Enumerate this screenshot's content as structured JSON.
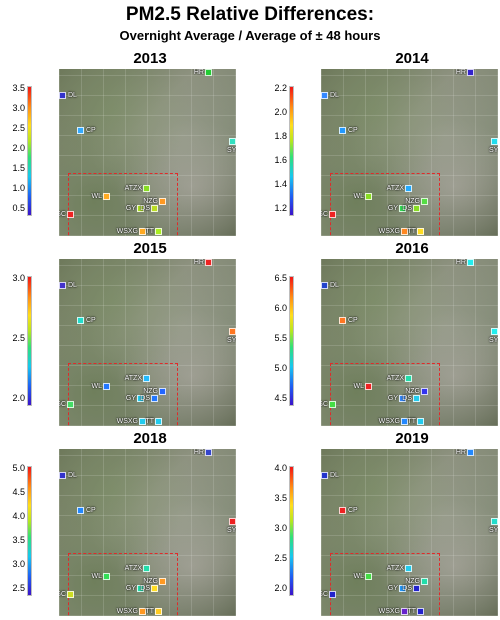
{
  "title": "PM2.5 Relative Differences:",
  "subtitle": "Overnight Average / Average of ± 48 hours",
  "site_labels": {
    "HR": "HR",
    "DL": "DL",
    "CP": "CP",
    "SY": "SY",
    "ATZX": "ATZX",
    "WL": "WL",
    "NZG": "NZG",
    "GY": "GY",
    "DS": "DS",
    "GC": "GC",
    "WSXG": "WSXG",
    "TT": "TT"
  },
  "panels": [
    {
      "year": "2013",
      "ticks": [
        "3.5",
        "3.0",
        "2.5",
        "2.0",
        "1.5",
        "1.0",
        "0.5"
      ],
      "colors": {
        "HR": "#22cc33",
        "DL": "#3333cc",
        "CP": "#33aaff",
        "SY": "#33e0c0",
        "ATZX": "#88dd22",
        "WL": "#ffaa22",
        "NZG": "#ff9922",
        "GY": "#aadd22",
        "DS": "#bbdd22",
        "GC": "#ee2222",
        "WSXG": "#ffaa22",
        "TT": "#aaee22"
      }
    },
    {
      "year": "2014",
      "ticks": [
        "2.2",
        "2.0",
        "1.8",
        "1.6",
        "1.4",
        "1.2"
      ],
      "colors": {
        "HR": "#3322cc",
        "DL": "#3388ff",
        "CP": "#2299ff",
        "SY": "#22ddee",
        "ATZX": "#22aaff",
        "WL": "#88dd22",
        "NZG": "#55dd44",
        "GY": "#33dd55",
        "DS": "#88dd22",
        "GC": "#ee2222",
        "WSXG": "#ff8822",
        "TT": "#ffdd22"
      }
    },
    {
      "year": "2015",
      "ticks": [
        "3.0",
        "2.5",
        "2.0"
      ],
      "colors": {
        "HR": "#ee2222",
        "DL": "#4433cc",
        "CP": "#22ddcc",
        "SY": "#ff7722",
        "ATZX": "#22bbff",
        "WL": "#2277ff",
        "NZG": "#2266ff",
        "GY": "#22ccee",
        "DS": "#2277ff",
        "GC": "#44dd66",
        "WSXG": "#22ccee",
        "TT": "#22ccee"
      }
    },
    {
      "year": "2016",
      "ticks": [
        "6.5",
        "6.0",
        "5.5",
        "5.0",
        "4.5"
      ],
      "colors": {
        "HR": "#22eeee",
        "DL": "#2244cc",
        "CP": "#ff7722",
        "SY": "#22eeee",
        "ATZX": "#22ddaa",
        "WL": "#ee2222",
        "NZG": "#3333ee",
        "GY": "#3388ff",
        "DS": "#22ccee",
        "GC": "#44dd44",
        "WSXG": "#2288ff",
        "TT": "#22ccee"
      }
    },
    {
      "year": "2018",
      "ticks": [
        "5.0",
        "4.5",
        "4.0",
        "3.5",
        "3.0",
        "2.5"
      ],
      "colors": {
        "HR": "#3344cc",
        "DL": "#3333cc",
        "CP": "#2288ff",
        "SY": "#ee2222",
        "ATZX": "#22ddaa",
        "WL": "#33dd55",
        "NZG": "#ff9922",
        "GY": "#22ddaa",
        "DS": "#ffdd22",
        "GC": "#ccdd22",
        "WSXG": "#ff9922",
        "TT": "#ffcc22"
      }
    },
    {
      "year": "2019",
      "ticks": [
        "4.0",
        "3.5",
        "3.0",
        "2.5",
        "2.0"
      ],
      "colors": {
        "HR": "#2288ff",
        "DL": "#2233cc",
        "CP": "#ee2222",
        "SY": "#22ddcc",
        "ATZX": "#22ccee",
        "WL": "#44dd44",
        "NZG": "#22ddaa",
        "GY": "#2299ff",
        "DS": "#2222cc",
        "GC": "#2222cc",
        "WSXG": "#6622cc",
        "TT": "#2222cc"
      }
    }
  ]
}
